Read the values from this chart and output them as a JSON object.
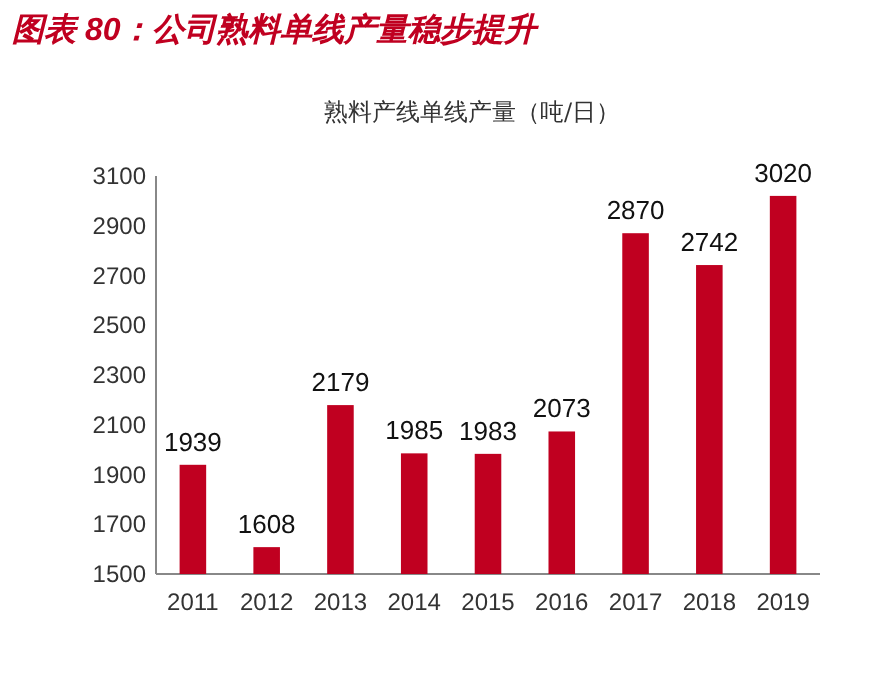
{
  "chart_data": {
    "type": "bar",
    "title": "图表 80：公司熟料单线产量稳步提升",
    "subtitle": "熟料产线单线产量（吨/日）",
    "categories": [
      "2011",
      "2012",
      "2013",
      "2014",
      "2015",
      "2016",
      "2017",
      "2018",
      "2019"
    ],
    "values": [
      1939,
      1608,
      2179,
      1985,
      1983,
      2073,
      2870,
      2742,
      3020
    ],
    "color": "#c00020",
    "ylim": [
      1500,
      3100
    ],
    "yticks": [
      1500,
      1700,
      1900,
      2100,
      2300,
      2500,
      2700,
      2900,
      3100
    ],
    "data_labels": true
  }
}
